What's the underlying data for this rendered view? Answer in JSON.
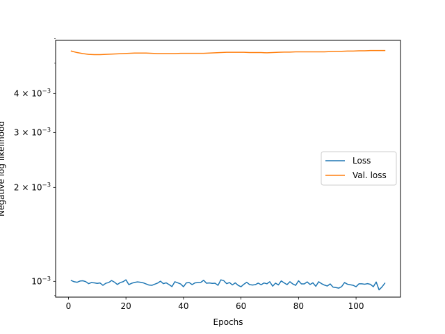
{
  "chart_data": {
    "type": "line",
    "title": "",
    "xlabel": "Epochs",
    "ylabel": "Negative log likelihood",
    "xlim": [
      -4.45,
      115.45
    ],
    "ylim": [
      0.00089,
      0.00592
    ],
    "yscale": "log",
    "grid": false,
    "legend_position": "center-right",
    "x_ticks": [
      0,
      20,
      40,
      60,
      80,
      100
    ],
    "x_tick_labels": [
      "0",
      "20",
      "40",
      "60",
      "80",
      "100"
    ],
    "y_ticks": [
      {
        "value": 0.001,
        "mantissa": "10",
        "exp": "−3"
      },
      {
        "value": 0.002,
        "mantissa": "2 × 10",
        "exp": "−3"
      },
      {
        "value": 0.003,
        "mantissa": "3 × 10",
        "exp": "−3"
      },
      {
        "value": 0.004,
        "mantissa": "4 × 10",
        "exp": "−3"
      }
    ],
    "y_minor_ticks": [
      0.0009,
      0.005,
      0.006
    ],
    "series": [
      {
        "name": "Loss",
        "color": "#1f77b4",
        "x": [
          1,
          2,
          3,
          4,
          5,
          6,
          7,
          8,
          9,
          10,
          11,
          12,
          13,
          14,
          15,
          16,
          17,
          18,
          19,
          20,
          21,
          22,
          23,
          24,
          25,
          26,
          27,
          28,
          29,
          30,
          31,
          32,
          33,
          34,
          35,
          36,
          37,
          38,
          39,
          40,
          41,
          42,
          43,
          44,
          45,
          46,
          47,
          48,
          49,
          50,
          51,
          52,
          53,
          54,
          55,
          56,
          57,
          58,
          59,
          60,
          61,
          62,
          63,
          64,
          65,
          66,
          67,
          68,
          69,
          70,
          71,
          72,
          73,
          74,
          75,
          76,
          77,
          78,
          79,
          80,
          81,
          82,
          83,
          84,
          85,
          86,
          87,
          88,
          89,
          90,
          91,
          92,
          93,
          94,
          95,
          96,
          97,
          98,
          99,
          100,
          101,
          102,
          103,
          104,
          105,
          106,
          107,
          108,
          109,
          110
        ],
        "values": [
          0.001006,
          0.000997,
          0.000993,
          0.001002,
          0.001004,
          0.000998,
          0.000983,
          0.000991,
          0.000989,
          0.000985,
          0.000988,
          0.000971,
          0.000986,
          0.000991,
          0.001006,
          0.000994,
          0.000977,
          0.000991,
          0.000997,
          0.001011,
          0.000976,
          0.000986,
          0.000992,
          0.000996,
          0.000993,
          0.000989,
          0.000981,
          0.000973,
          0.000971,
          0.000979,
          0.000987,
          0.001001,
          0.000983,
          0.000989,
          0.000976,
          0.000962,
          0.000997,
          0.000989,
          0.000981,
          0.000961,
          0.000989,
          0.000991,
          0.000976,
          0.000989,
          0.000991,
          0.000992,
          0.001008,
          0.000986,
          0.000988,
          0.000985,
          0.000986,
          0.000971,
          0.001011,
          0.001005,
          0.000983,
          0.000991,
          0.000974,
          0.000989,
          0.000971,
          0.000961,
          0.000979,
          0.000993,
          0.000976,
          0.000973,
          0.000976,
          0.000987,
          0.000975,
          0.000988,
          0.000982,
          0.000997,
          0.000965,
          0.000987,
          0.000974,
          0.001003,
          0.000989,
          0.000976,
          0.000997,
          0.000981,
          0.000971,
          0.001004,
          0.000981,
          0.000981,
          0.000996,
          0.000977,
          0.000989,
          0.000964,
          0.000997,
          0.000983,
          0.000973,
          0.000966,
          0.000981,
          0.000958,
          0.000955,
          0.000951,
          0.000962,
          0.000991,
          0.000979,
          0.000975,
          0.000971,
          0.000961,
          0.000982,
          0.000982,
          0.000979,
          0.000983,
          0.000978,
          0.000961,
          0.000995,
          0.000939,
          0.000959,
          0.000986
        ]
      },
      {
        "name": "Val. loss",
        "color": "#ff7f0e",
        "x": [
          1,
          3,
          5,
          7,
          9,
          11,
          13,
          15,
          17,
          19,
          21,
          23,
          25,
          27,
          29,
          31,
          33,
          35,
          37,
          39,
          41,
          43,
          45,
          47,
          49,
          51,
          53,
          55,
          57,
          59,
          61,
          63,
          65,
          67,
          69,
          71,
          73,
          75,
          77,
          79,
          81,
          83,
          85,
          87,
          89,
          91,
          93,
          95,
          97,
          99,
          101,
          103,
          105,
          107,
          110
        ],
        "values": [
          0.00547,
          0.00541,
          0.00537,
          0.00534,
          0.00533,
          0.00533,
          0.00534,
          0.00535,
          0.00536,
          0.00537,
          0.00538,
          0.00539,
          0.00539,
          0.00539,
          0.00538,
          0.00537,
          0.00537,
          0.00537,
          0.00537,
          0.00538,
          0.00538,
          0.00538,
          0.00538,
          0.00538,
          0.00539,
          0.0054,
          0.00541,
          0.00542,
          0.00542,
          0.00542,
          0.00542,
          0.00541,
          0.00541,
          0.00541,
          0.0054,
          0.00541,
          0.00542,
          0.00543,
          0.00543,
          0.00544,
          0.00544,
          0.00544,
          0.00544,
          0.00544,
          0.00544,
          0.00545,
          0.00546,
          0.00546,
          0.00547,
          0.00547,
          0.00548,
          0.00548,
          0.00549,
          0.00549,
          0.00549
        ]
      }
    ]
  }
}
